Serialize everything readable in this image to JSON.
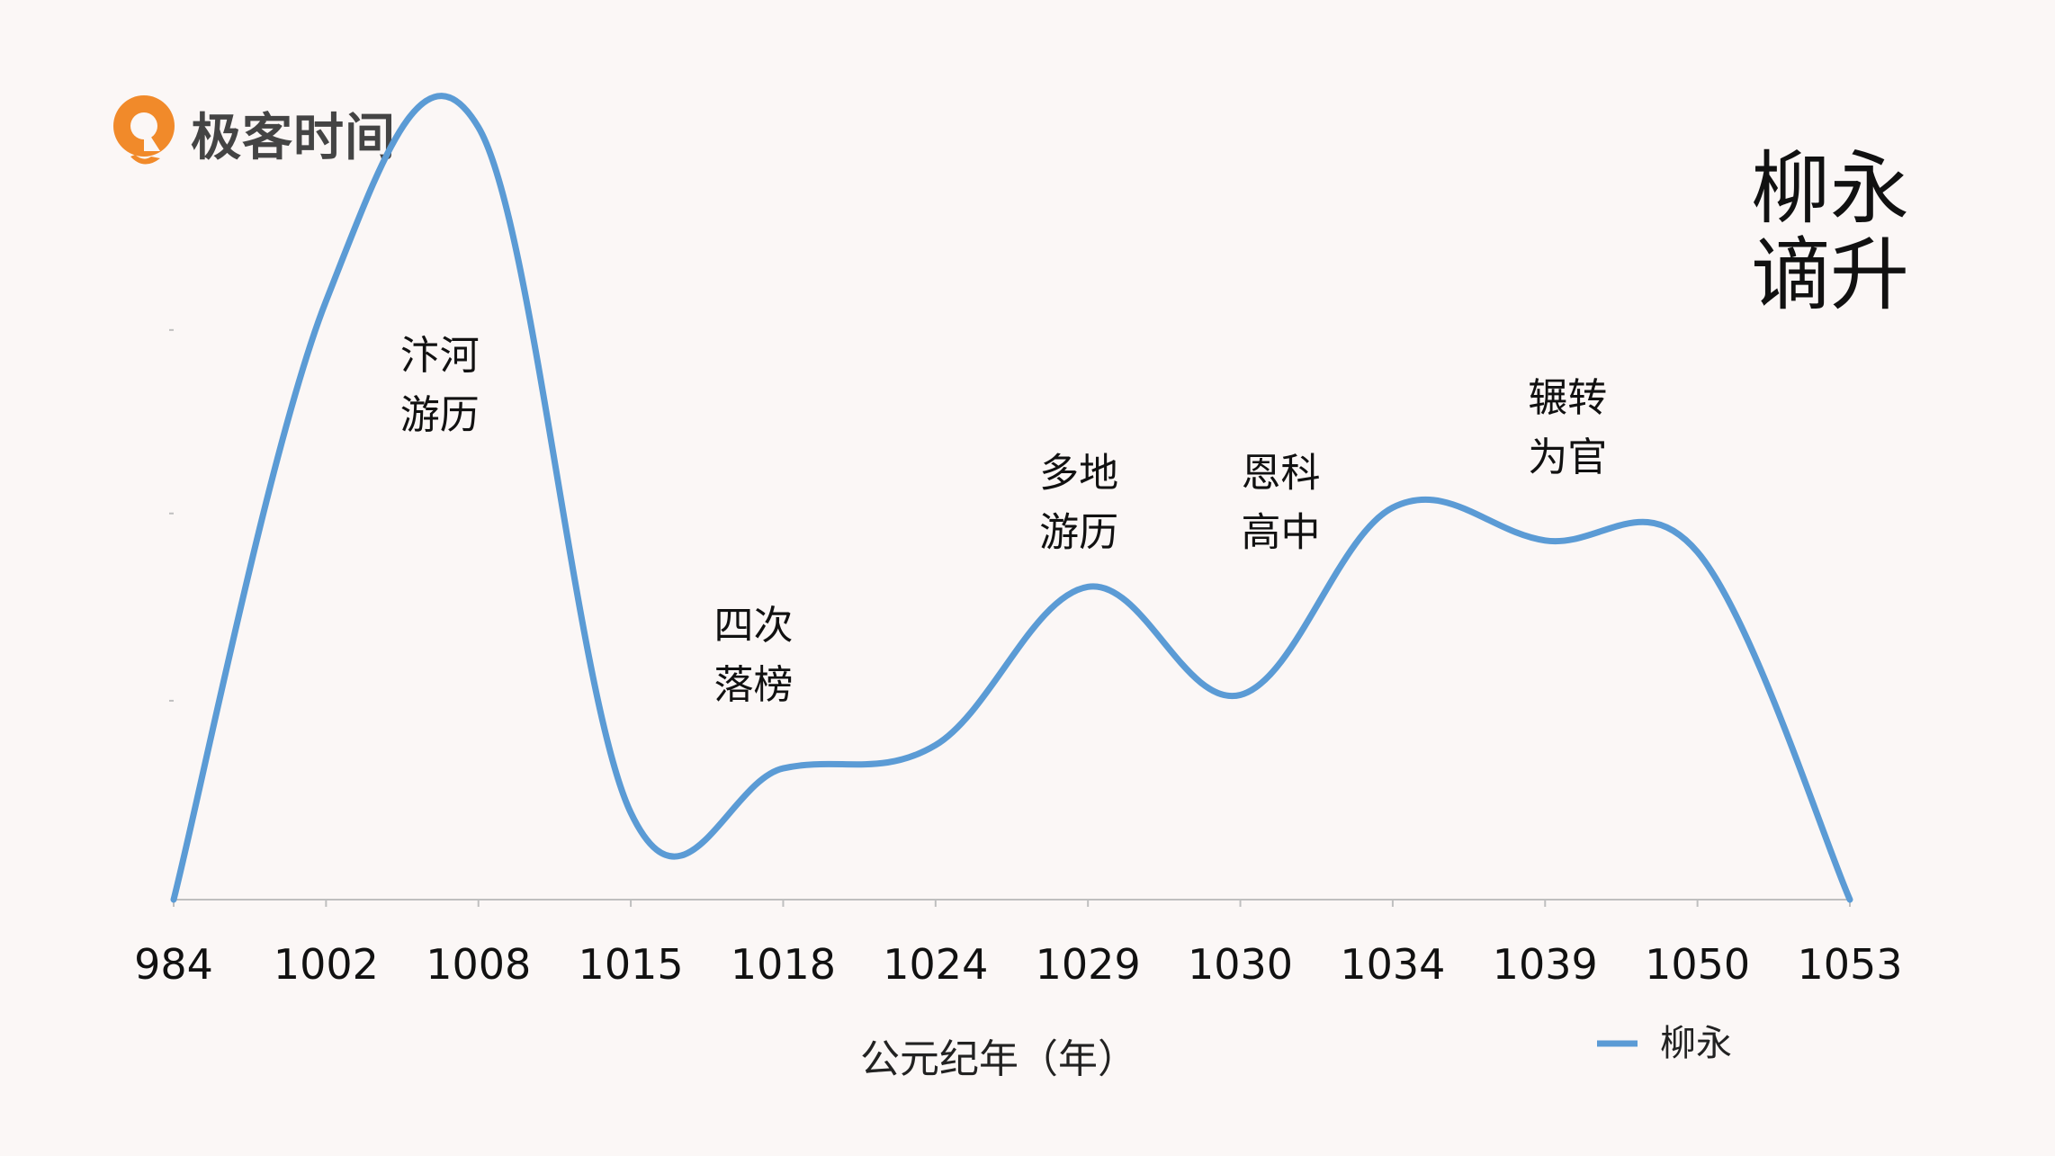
{
  "brand": {
    "name": "极客时间",
    "logo_color": "#f18a2a",
    "text_color": "#444444"
  },
  "corner_title": {
    "line1": "柳永",
    "line2": "谪升"
  },
  "chart_data": {
    "type": "line",
    "categories": [
      "984",
      "1002",
      "1008",
      "1015",
      "1018",
      "1024",
      "1029",
      "1030",
      "1034",
      "1039",
      "1050",
      "1053"
    ],
    "series": [
      {
        "name": "柳永",
        "color": "#5b9bd5",
        "smooth": true,
        "values": [
          0,
          3.1,
          4.0,
          0.45,
          0.68,
          0.8,
          1.62,
          1.06,
          2.03,
          1.86,
          1.8,
          0
        ]
      }
    ],
    "ylim": [
      0,
      4.1
    ],
    "y_gridlines": false,
    "y_tick_labels": false,
    "xlabel": "公元纪年（年）",
    "ylabel": "",
    "legend_position": "bottom-right",
    "annotations": [
      {
        "line1": "汴河",
        "line2": "游历",
        "near_category": "1008",
        "value": 2.75
      },
      {
        "line1": "四次",
        "line2": "落榜",
        "near_category": "1018",
        "value": 1.35
      },
      {
        "line1": "多地",
        "line2": "游历",
        "near_category": "1029",
        "value": 2.14
      },
      {
        "line1": "恩科",
        "line2": "高中",
        "near_category": "1030",
        "value": 2.14
      },
      {
        "line1": "辗转",
        "line2": "为官",
        "near_category": "1039",
        "value": 2.53
      }
    ]
  }
}
